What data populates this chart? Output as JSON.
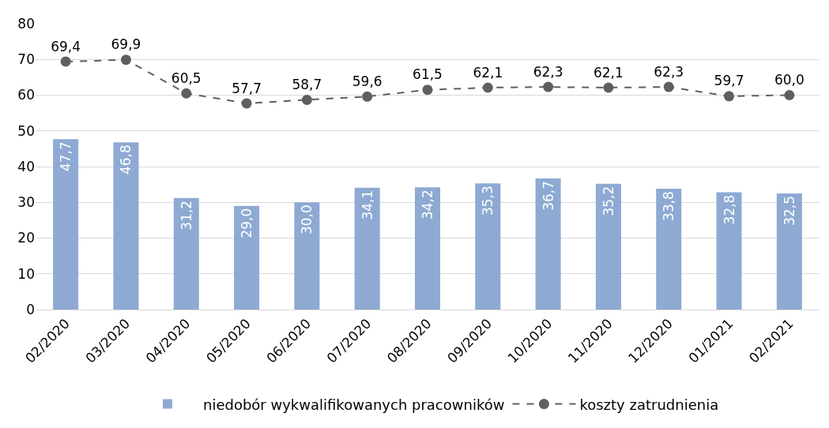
{
  "chart_data": {
    "type": "bar",
    "categories": [
      "02/2020",
      "03/2020",
      "04/2020",
      "05/2020",
      "06/2020",
      "07/2020",
      "08/2020",
      "09/2020",
      "10/2020",
      "11/2020",
      "12/2020",
      "01/2021",
      "02/2021"
    ],
    "series": [
      {
        "name": "niedobór wykwalifikowanych pracowników",
        "color": "#8eaad3",
        "values": [
          47.7,
          46.8,
          31.2,
          29.0,
          30.0,
          34.1,
          34.2,
          35.3,
          36.7,
          35.2,
          33.8,
          32.8,
          32.5
        ],
        "value_labels": [
          "47,7",
          "46,8",
          "31,2",
          "29,0",
          "30,0",
          "34,1",
          "34,2",
          "35,3",
          "36,7",
          "35,2",
          "33,8",
          "32,8",
          "32,5"
        ]
      },
      {
        "name": "koszty zatrudnienia",
        "type": "line",
        "color": "#5f5f5f",
        "line_style": "dashed",
        "marker": "circle",
        "values": [
          69.4,
          69.9,
          60.5,
          57.7,
          58.7,
          59.6,
          61.5,
          62.1,
          62.3,
          62.1,
          62.3,
          59.7,
          60.0
        ],
        "value_labels": [
          "69,4",
          "69,9",
          "60,5",
          "57,7",
          "58,7",
          "59,6",
          "61,5",
          "62,1",
          "62,3",
          "62,1",
          "62,3",
          "59,7",
          "60,0"
        ]
      }
    ],
    "ylim": [
      0,
      80
    ],
    "yticks": [
      0,
      10,
      20,
      30,
      40,
      50,
      60,
      70,
      80
    ],
    "grid": "y",
    "legend": "bottom"
  }
}
